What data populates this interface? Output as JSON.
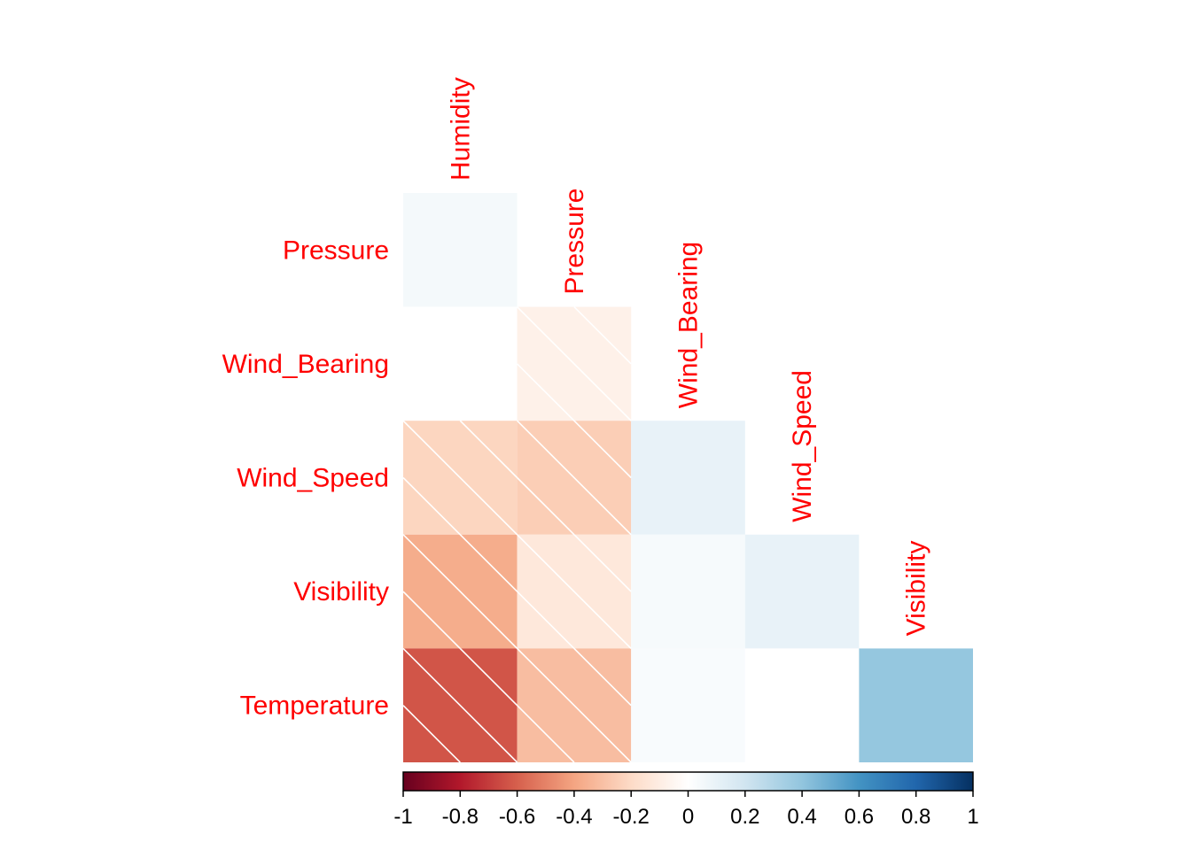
{
  "chart_data": {
    "type": "heatmap",
    "layout": "lower-triangle",
    "title": "",
    "variables": [
      "Humidity",
      "Pressure",
      "Wind_Bearing",
      "Wind_Speed",
      "Visibility",
      "Temperature"
    ],
    "row_labels": [
      "Pressure",
      "Wind_Bearing",
      "Wind_Speed",
      "Visibility",
      "Temperature"
    ],
    "col_labels": [
      "Humidity",
      "Pressure",
      "Wind_Bearing",
      "Wind_Speed",
      "Visibility"
    ],
    "cells": [
      {
        "row": "Pressure",
        "col": "Humidity",
        "value": 0.05,
        "hatched": false
      },
      {
        "row": "Wind_Bearing",
        "col": "Humidity",
        "value": 0.0,
        "hatched": false
      },
      {
        "row": "Wind_Bearing",
        "col": "Pressure",
        "value": -0.08,
        "hatched": true
      },
      {
        "row": "Wind_Speed",
        "col": "Humidity",
        "value": -0.22,
        "hatched": true
      },
      {
        "row": "Wind_Speed",
        "col": "Pressure",
        "value": -0.25,
        "hatched": true
      },
      {
        "row": "Wind_Speed",
        "col": "Wind_Bearing",
        "value": 0.1,
        "hatched": false
      },
      {
        "row": "Visibility",
        "col": "Humidity",
        "value": -0.37,
        "hatched": true
      },
      {
        "row": "Visibility",
        "col": "Pressure",
        "value": -0.13,
        "hatched": true
      },
      {
        "row": "Visibility",
        "col": "Wind_Bearing",
        "value": 0.04,
        "hatched": false
      },
      {
        "row": "Visibility",
        "col": "Wind_Speed",
        "value": 0.1,
        "hatched": false
      },
      {
        "row": "Temperature",
        "col": "Humidity",
        "value": -0.63,
        "hatched": true
      },
      {
        "row": "Temperature",
        "col": "Pressure",
        "value": -0.31,
        "hatched": true
      },
      {
        "row": "Temperature",
        "col": "Wind_Bearing",
        "value": 0.03,
        "hatched": false
      },
      {
        "row": "Temperature",
        "col": "Wind_Speed",
        "value": 0.0,
        "hatched": false
      },
      {
        "row": "Temperature",
        "col": "Visibility",
        "value": 0.39,
        "hatched": false
      }
    ],
    "colorbar": {
      "range": [
        -1,
        1
      ],
      "ticks": [
        "-1",
        "-0.8",
        "-0.6",
        "-0.4",
        "-0.2",
        "0",
        "0.2",
        "0.4",
        "0.6",
        "0.8",
        "1"
      ],
      "orientation": "horizontal",
      "placement": "bottom"
    },
    "colors": {
      "scale": [
        "#67001F",
        "#B2182B",
        "#D6604D",
        "#F4A582",
        "#FDDBC7",
        "#FFFFFF",
        "#D1E5F0",
        "#92C5DE",
        "#4393C3",
        "#2166AC",
        "#053061"
      ],
      "label_color": "#FF0000",
      "hatch_color": "#FFFFFF"
    }
  }
}
